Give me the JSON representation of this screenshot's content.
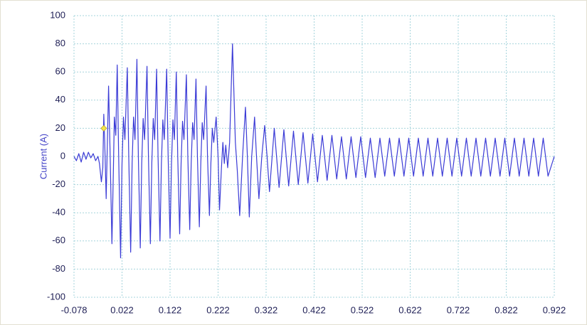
{
  "chart_data": {
    "type": "line",
    "ylabel": "Current (A)",
    "xlim": [
      -0.078,
      0.922
    ],
    "ylim": [
      -100,
      100
    ],
    "xticks": [
      -0.078,
      0.022,
      0.122,
      0.222,
      0.322,
      0.422,
      0.522,
      0.622,
      0.722,
      0.822,
      0.922
    ],
    "yticks": [
      -100,
      -80,
      -60,
      -40,
      -20,
      0,
      20,
      40,
      60,
      80,
      100
    ],
    "grid": true,
    "x": [
      -0.078,
      -0.073,
      -0.068,
      -0.063,
      -0.058,
      -0.053,
      -0.048,
      -0.043,
      -0.038,
      -0.033,
      -0.028,
      -0.025,
      -0.021,
      -0.018,
      -0.016,
      -0.014,
      -0.011,
      -0.006,
      -0.003,
      0.001,
      0.004,
      0.006,
      0.009,
      0.012,
      0.015,
      0.019,
      0.022,
      0.025,
      0.028,
      0.033,
      0.036,
      0.04,
      0.043,
      0.046,
      0.049,
      0.053,
      0.056,
      0.06,
      0.063,
      0.066,
      0.069,
      0.074,
      0.077,
      0.081,
      0.084,
      0.087,
      0.09,
      0.094,
      0.097,
      0.101,
      0.104,
      0.107,
      0.11,
      0.115,
      0.118,
      0.122,
      0.125,
      0.128,
      0.131,
      0.135,
      0.138,
      0.142,
      0.145,
      0.148,
      0.151,
      0.156,
      0.159,
      0.163,
      0.166,
      0.169,
      0.172,
      0.176,
      0.179,
      0.183,
      0.186,
      0.189,
      0.192,
      0.197,
      0.2,
      0.204,
      0.207,
      0.21,
      0.213,
      0.218,
      0.222,
      0.225,
      0.229,
      0.232,
      0.235,
      0.238,
      0.242,
      0.246,
      0.252,
      0.258,
      0.262,
      0.267,
      0.273,
      0.279,
      0.283,
      0.287,
      0.292,
      0.298,
      0.302,
      0.307,
      0.313,
      0.319,
      0.324,
      0.329,
      0.339,
      0.349,
      0.359,
      0.369,
      0.379,
      0.389,
      0.399,
      0.409,
      0.419,
      0.429,
      0.439,
      0.449,
      0.459,
      0.469,
      0.479,
      0.489,
      0.499,
      0.509,
      0.519,
      0.529,
      0.539,
      0.549,
      0.559,
      0.569,
      0.579,
      0.589,
      0.599,
      0.609,
      0.619,
      0.629,
      0.639,
      0.649,
      0.659,
      0.669,
      0.679,
      0.689,
      0.699,
      0.709,
      0.719,
      0.729,
      0.739,
      0.749,
      0.759,
      0.769,
      0.779,
      0.789,
      0.799,
      0.809,
      0.819,
      0.829,
      0.839,
      0.849,
      0.859,
      0.869,
      0.879,
      0.889,
      0.899,
      0.909,
      0.922
    ],
    "series": [
      {
        "color": "#3b3bd6",
        "values": [
          0,
          -3,
          2,
          -4,
          3,
          -2,
          3,
          -1,
          2,
          -3,
          0,
          -5,
          -18,
          -8,
          30,
          10,
          -30,
          50,
          5,
          -62,
          -10,
          28,
          15,
          65,
          0,
          -72,
          -5,
          28,
          12,
          63,
          0,
          -68,
          -5,
          28,
          12,
          69,
          0,
          -65,
          -5,
          27,
          12,
          64,
          0,
          -62,
          -5,
          27,
          12,
          62,
          0,
          -60,
          -5,
          26,
          12,
          62,
          0,
          -58,
          -5,
          26,
          12,
          60,
          0,
          -55,
          -5,
          25,
          12,
          58,
          0,
          -52,
          -5,
          24,
          12,
          55,
          0,
          -50,
          -5,
          24,
          12,
          50,
          0,
          -42,
          -5,
          20,
          10,
          28,
          0,
          -38,
          -8,
          10,
          -5,
          8,
          -8,
          10,
          80,
          10,
          -10,
          -42,
          0,
          35,
          0,
          -43,
          0,
          28,
          0,
          -30,
          0,
          22,
          0,
          -25,
          20,
          -22,
          19,
          -21,
          18,
          -20,
          17,
          -19,
          16,
          -18,
          15,
          -17,
          15,
          -16,
          14,
          -16,
          14,
          -15,
          14,
          -15,
          13,
          -15,
          13,
          -14,
          13,
          -14,
          13,
          -14,
          13,
          -14,
          13,
          -14,
          13,
          -14,
          13,
          -14,
          13,
          -14,
          13,
          -14,
          13,
          -14,
          13,
          -14,
          13,
          -14,
          13,
          -14,
          13,
          -14,
          13,
          -14,
          13,
          -14,
          13,
          -14,
          13,
          -14,
          0
        ]
      }
    ],
    "marker": {
      "x": -0.016,
      "y": 20,
      "color": "#f3e34c"
    }
  }
}
